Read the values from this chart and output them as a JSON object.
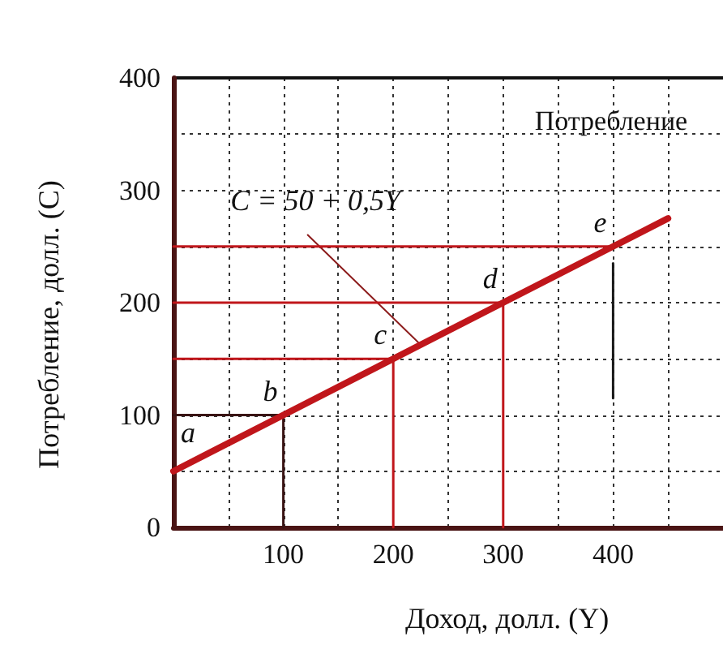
{
  "chart_data": {
    "type": "line",
    "xlabel": "Доход, долл. (Y)",
    "ylabel": "Потребление, долл. (C)",
    "xlim": [
      0,
      500
    ],
    "ylim": [
      0,
      400
    ],
    "xticks": [
      {
        "value": 0,
        "label": null
      },
      {
        "value": 50,
        "label": null
      },
      100,
      {
        "value": 150,
        "label": null
      },
      200,
      {
        "value": 250,
        "label": null
      },
      300,
      {
        "value": 350,
        "label": null
      },
      400,
      {
        "value": 450,
        "label": null
      }
    ],
    "yticks": [
      0,
      {
        "value": 50,
        "label": null
      },
      100,
      {
        "value": 150,
        "label": null
      },
      200,
      {
        "value": 250,
        "label": null
      },
      300,
      {
        "value": 350,
        "label": null
      },
      400
    ],
    "grid": true,
    "marker": "none",
    "line_style": "solid",
    "legend": false,
    "series": [
      {
        "name": "Потребление",
        "color": "#c0161b",
        "x": [
          0,
          450
        ],
        "values": [
          50,
          275
        ]
      },
      {
        "color": "#3a1414",
        "x": [
          0,
          100,
          100
        ],
        "values": [
          100,
          100,
          0
        ]
      },
      {
        "color": "#c0161b",
        "x": [
          0,
          200,
          200
        ],
        "values": [
          150,
          150,
          0
        ]
      },
      {
        "color": "#c0161b",
        "x": [
          0,
          300,
          300
        ],
        "values": [
          200,
          200,
          0
        ]
      },
      {
        "color": "#c0161b",
        "x": [
          0,
          400
        ],
        "values": [
          250,
          250
        ]
      },
      {
        "color": "#1a1a1a",
        "x": [
          400,
          400
        ],
        "values": [
          115,
          235
        ]
      }
    ],
    "annotations": [
      {
        "text": "C = 50 + 0,5Y",
        "x": 225,
        "y": 162.5
      },
      {
        "text": "a",
        "x": 25,
        "y": 62.5
      },
      {
        "text": "b",
        "x": 100,
        "y": 100
      },
      {
        "text": "c",
        "x": 200,
        "y": 150
      },
      {
        "text": "d",
        "x": 300,
        "y": 200
      },
      {
        "text": "e",
        "x": 400,
        "y": 250
      }
    ]
  }
}
